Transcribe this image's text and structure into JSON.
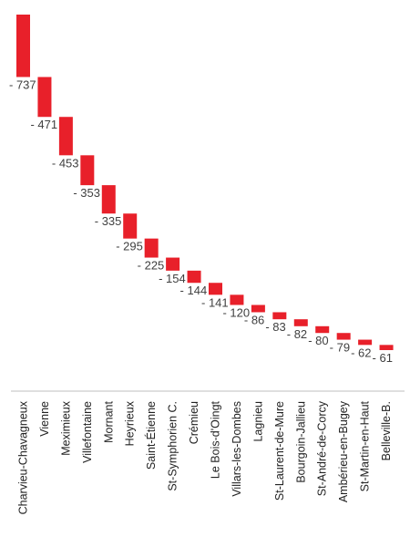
{
  "chart_data": {
    "type": "bar",
    "subtype": "waterfall",
    "bar_color": "#e8202a",
    "categories": [
      "Charvieu-Chavagneux",
      "Vienne",
      "Meximieux",
      "Villefontaine",
      "Mornant",
      "Heyrieux",
      "Saint-Étienne",
      "St-Symphorien C.",
      "Crémieu",
      "Le Bois-d'Oingt",
      "Villars-les-Dombes",
      "Lagnieu",
      "St-Laurent-de-Mure",
      "Bourgoin-Jallieu",
      "St-André-de-Corcy",
      "Ambérieu-en-Bugey",
      "St-Martin-en-Haut",
      "Belleville-B."
    ],
    "values": [
      -737,
      -471,
      -453,
      -353,
      -335,
      -295,
      -225,
      -154,
      -144,
      -141,
      -120,
      -86,
      -83,
      -82,
      -80,
      -79,
      -62,
      -61
    ],
    "labels": [
      "- 737",
      "- 471",
      "- 453",
      "- 353",
      "- 335",
      "- 295",
      "- 225",
      "- 154",
      "- 144",
      "- 141",
      "- 120",
      "- 86",
      "- 83",
      "- 82",
      "- 80",
      "- 79",
      "- 62",
      "- 61"
    ],
    "title": "",
    "xlabel": "",
    "ylabel": ""
  }
}
